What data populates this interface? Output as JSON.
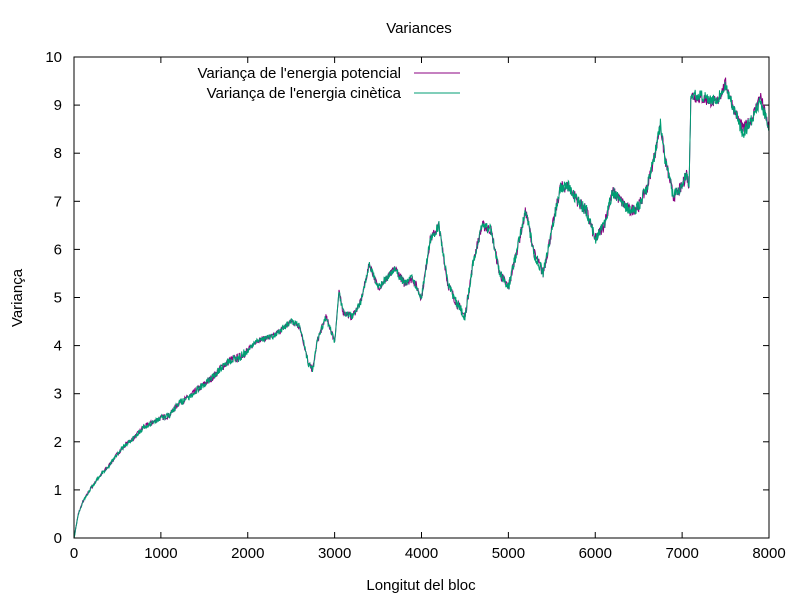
{
  "chart_data": {
    "type": "line",
    "title": "Variances",
    "xlabel": "Longitut del bloc",
    "ylabel": "Variança",
    "xlim": [
      0,
      8000
    ],
    "ylim": [
      0,
      10
    ],
    "xticks": [
      0,
      1000,
      2000,
      3000,
      4000,
      5000,
      6000,
      7000,
      8000
    ],
    "yticks": [
      0,
      1,
      2,
      3,
      4,
      5,
      6,
      7,
      8,
      9,
      10
    ],
    "grid": false,
    "legend_position": "top-left",
    "series": [
      {
        "name": "Variança de l'energia potencial",
        "color": "#8b0080",
        "x": [
          0,
          50,
          100,
          200,
          300,
          400,
          500,
          600,
          700,
          800,
          900,
          1000,
          1100,
          1200,
          1300,
          1400,
          1500,
          1600,
          1700,
          1800,
          1900,
          2000,
          2100,
          2200,
          2300,
          2400,
          2500,
          2600,
          2700,
          2750,
          2800,
          2900,
          3000,
          3050,
          3100,
          3200,
          3300,
          3400,
          3500,
          3600,
          3700,
          3800,
          3900,
          4000,
          4100,
          4200,
          4300,
          4400,
          4500,
          4600,
          4700,
          4800,
          4900,
          5000,
          5100,
          5200,
          5300,
          5400,
          5500,
          5600,
          5700,
          5800,
          5900,
          6000,
          6100,
          6200,
          6300,
          6400,
          6500,
          6600,
          6700,
          6750,
          6800,
          6900,
          7000,
          7050,
          7080,
          7100,
          7200,
          7300,
          7400,
          7500,
          7600,
          7700,
          7800,
          7900,
          8000
        ],
        "y": [
          0,
          0.5,
          0.75,
          1.05,
          1.3,
          1.5,
          1.75,
          1.95,
          2.1,
          2.3,
          2.4,
          2.5,
          2.55,
          2.8,
          2.9,
          3.05,
          3.2,
          3.35,
          3.55,
          3.7,
          3.75,
          3.9,
          4.1,
          4.15,
          4.2,
          4.35,
          4.5,
          4.4,
          3.6,
          3.5,
          4.1,
          4.6,
          4.1,
          5.1,
          4.7,
          4.6,
          4.9,
          5.7,
          5.2,
          5.4,
          5.6,
          5.3,
          5.4,
          5.0,
          6.2,
          6.5,
          5.3,
          4.9,
          4.6,
          5.8,
          6.5,
          6.4,
          5.5,
          5.2,
          6.0,
          6.8,
          5.9,
          5.5,
          6.4,
          7.3,
          7.3,
          7.0,
          6.8,
          6.2,
          6.5,
          7.2,
          7.0,
          6.8,
          6.9,
          7.3,
          8.1,
          8.6,
          7.9,
          7.1,
          7.3,
          7.6,
          7.3,
          9.2,
          9.15,
          9.1,
          9.05,
          9.45,
          8.9,
          8.5,
          8.7,
          9.2,
          8.5
        ]
      },
      {
        "name": "Variança de l'energia cinètica",
        "color": "#009e73",
        "x": [
          0,
          50,
          100,
          200,
          300,
          400,
          500,
          600,
          700,
          800,
          900,
          1000,
          1100,
          1200,
          1300,
          1400,
          1500,
          1600,
          1700,
          1800,
          1900,
          2000,
          2100,
          2200,
          2300,
          2400,
          2500,
          2600,
          2700,
          2750,
          2800,
          2900,
          3000,
          3050,
          3100,
          3200,
          3300,
          3400,
          3500,
          3600,
          3700,
          3800,
          3900,
          4000,
          4100,
          4200,
          4300,
          4400,
          4500,
          4600,
          4700,
          4800,
          4900,
          5000,
          5100,
          5200,
          5300,
          5400,
          5500,
          5600,
          5700,
          5800,
          5900,
          6000,
          6100,
          6200,
          6300,
          6400,
          6500,
          6600,
          6700,
          6750,
          6800,
          6900,
          7000,
          7050,
          7080,
          7100,
          7200,
          7300,
          7400,
          7500,
          7600,
          7700,
          7800,
          7900,
          8000
        ],
        "y": [
          0,
          0.5,
          0.75,
          1.05,
          1.3,
          1.5,
          1.75,
          1.95,
          2.1,
          2.3,
          2.4,
          2.5,
          2.55,
          2.8,
          2.9,
          3.05,
          3.2,
          3.35,
          3.55,
          3.7,
          3.75,
          3.9,
          4.1,
          4.15,
          4.2,
          4.35,
          4.5,
          4.4,
          3.6,
          3.5,
          4.1,
          4.6,
          4.1,
          5.1,
          4.7,
          4.6,
          4.9,
          5.7,
          5.2,
          5.4,
          5.6,
          5.3,
          5.4,
          5.0,
          6.2,
          6.5,
          5.3,
          4.9,
          4.6,
          5.8,
          6.5,
          6.4,
          5.5,
          5.2,
          6.0,
          6.8,
          5.9,
          5.5,
          6.4,
          7.3,
          7.3,
          7.0,
          6.8,
          6.2,
          6.5,
          7.2,
          7.0,
          6.8,
          6.9,
          7.3,
          8.1,
          8.6,
          7.9,
          7.1,
          7.3,
          7.6,
          7.3,
          9.2,
          9.2,
          9.15,
          9.1,
          9.4,
          8.9,
          8.4,
          8.7,
          9.1,
          8.5
        ]
      }
    ]
  }
}
